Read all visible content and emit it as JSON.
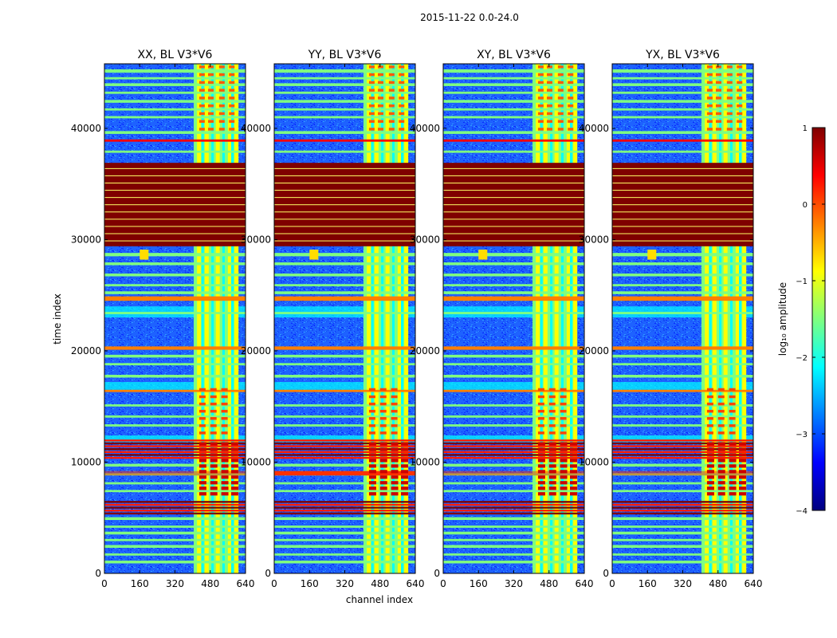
{
  "figure_title": "2015-11-22 0.0-24.0",
  "colors": {
    "jet_stops": [
      "#00007f",
      "#0000ff",
      "#007fff",
      "#00ffff",
      "#7fff7f",
      "#ffff00",
      "#ff7f00",
      "#ff0000",
      "#7f0000"
    ]
  },
  "chart_data": [
    {
      "type": "heatmap",
      "title": "XX, BL V3*V6",
      "xlabel": "",
      "ylabel": "time index",
      "xlim": [
        0,
        640
      ],
      "ylim": [
        0,
        45800
      ],
      "xticks": [
        "0",
        "160",
        "320",
        "480",
        "640"
      ],
      "yticks": [
        "0",
        "10000",
        "20000",
        "30000",
        "40000"
      ]
    },
    {
      "type": "heatmap",
      "title": "YY, BL V3*V6",
      "xlabel": "channel index",
      "ylabel": "",
      "xlim": [
        0,
        640
      ],
      "ylim": [
        0,
        45800
      ],
      "xticks": [
        "0",
        "160",
        "320",
        "480",
        "640"
      ],
      "yticks": [
        "0",
        "10000",
        "20000",
        "30000",
        "40000"
      ]
    },
    {
      "type": "heatmap",
      "title": "XY, BL V3*V6",
      "xlabel": "",
      "ylabel": "",
      "xlim": [
        0,
        640
      ],
      "ylim": [
        0,
        45800
      ],
      "xticks": [
        "0",
        "160",
        "320",
        "480",
        "640"
      ],
      "yticks": [
        "0",
        "10000",
        "20000",
        "30000",
        "40000"
      ]
    },
    {
      "type": "heatmap",
      "title": "YX, BL V3*V6",
      "xlabel": "",
      "ylabel": "",
      "xlim": [
        0,
        640
      ],
      "ylim": [
        0,
        45800
      ],
      "xticks": [
        "0",
        "160",
        "320",
        "480",
        "640"
      ],
      "yticks": [
        "0",
        "10000",
        "20000",
        "30000",
        "40000"
      ]
    }
  ],
  "colorbar": {
    "label": "log₁₀ amplitude",
    "range": [
      -4,
      1
    ],
    "ticks": [
      "1",
      "0",
      "−1",
      "−2",
      "−3",
      "−4"
    ]
  }
}
